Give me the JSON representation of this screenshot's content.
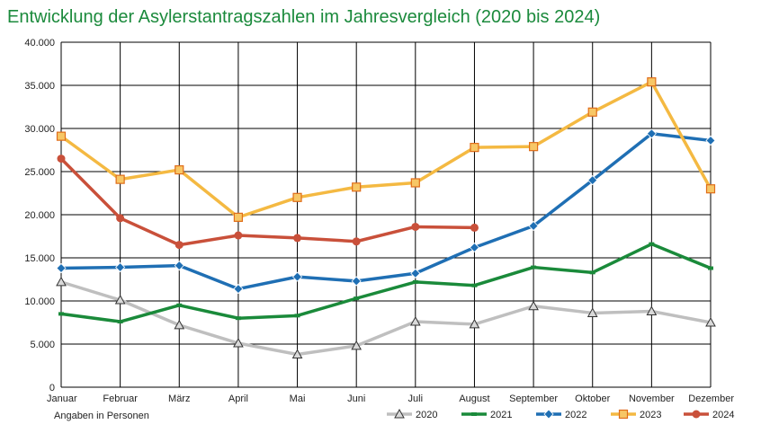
{
  "title": "Entwicklung der Asylerstantragszahlen im Jahresvergleich (2020 bis 2024)",
  "chart_data": {
    "type": "line",
    "title": "Entwicklung der Asylerstantragszahlen im Jahresvergleich (2020 bis 2024)",
    "note": "Angaben in Personen",
    "categories": [
      "Januar",
      "Februar",
      "März",
      "April",
      "Mai",
      "Juni",
      "Juli",
      "August",
      "September",
      "Oktober",
      "November",
      "Dezember"
    ],
    "ylim": [
      0,
      40000
    ],
    "yticks": [
      0,
      5000,
      10000,
      15000,
      20000,
      25000,
      30000,
      35000,
      40000
    ],
    "ytick_labels": [
      "0",
      "5.000",
      "10.000",
      "15.000",
      "20.000",
      "25.000",
      "30.000",
      "35.000",
      "40.000"
    ],
    "grid": true,
    "legend_position": "bottom-right",
    "series": [
      {
        "name": "2020",
        "color": "#bfbfbf",
        "marker": "triangle",
        "values": [
          12200,
          10100,
          7200,
          5100,
          3800,
          4800,
          7600,
          7300,
          9400,
          8600,
          8800,
          7500
        ]
      },
      {
        "name": "2021",
        "color": "#1a8a3a",
        "marker": "dash",
        "values": [
          8500,
          7600,
          9500,
          8000,
          8300,
          10300,
          12200,
          11800,
          13900,
          13300,
          16600,
          13800
        ]
      },
      {
        "name": "2022",
        "color": "#1f6fb4",
        "marker": "diamond",
        "values": [
          13800,
          13900,
          14100,
          11400,
          12800,
          12300,
          13200,
          16200,
          18700,
          24000,
          29400,
          28600
        ]
      },
      {
        "name": "2023",
        "color": "#f4b942",
        "marker": "square",
        "values": [
          29100,
          24100,
          25200,
          19700,
          22000,
          23200,
          23700,
          27800,
          27900,
          31900,
          35400,
          23000
        ]
      },
      {
        "name": "2024",
        "color": "#c9503a",
        "marker": "circle",
        "values": [
          26500,
          19600,
          16500,
          17600,
          17300,
          16900,
          18600,
          18500,
          null,
          null,
          null,
          null
        ]
      }
    ]
  }
}
